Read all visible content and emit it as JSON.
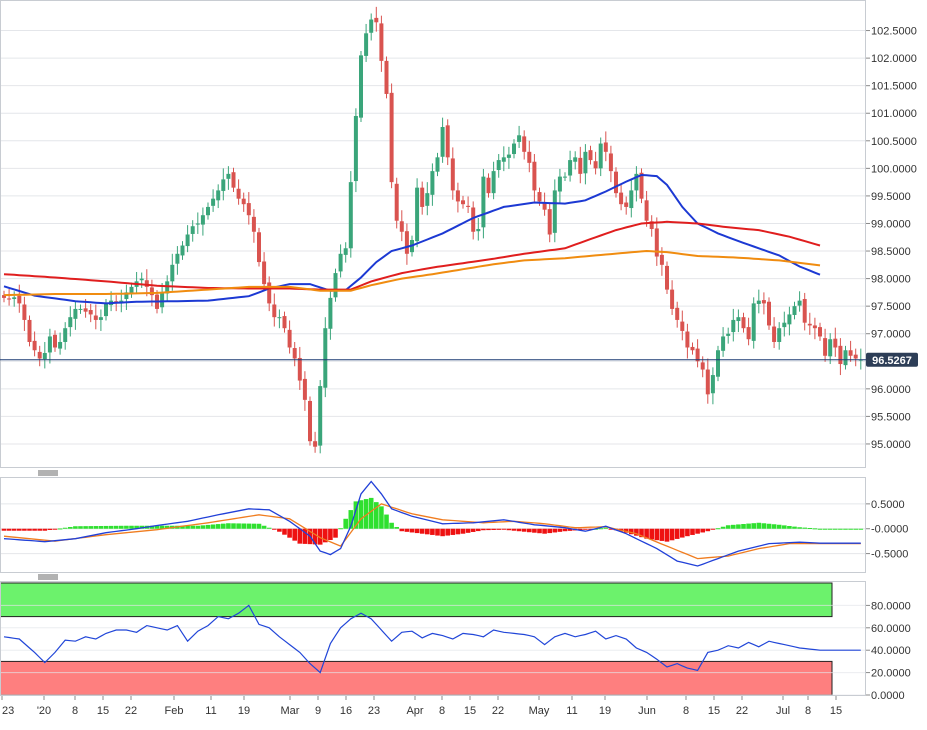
{
  "colors": {
    "up": "#3aa57a",
    "down": "#d9534f",
    "ma_blue": "#1c39d3",
    "ma_red": "#e01e1e",
    "ma_orange": "#f08c10",
    "macd_hist_pos": "#2fe02f",
    "macd_hist_neg": "#ee1111",
    "macd_line": "#2140d8",
    "signal_line": "#f07d20",
    "rsi_line": "#2146d8",
    "overbought_zone": "#6cf26c",
    "oversold_zone": "#fe7f7f",
    "price_line": "#1d3b73",
    "price_tag_bg": "#2d3e57",
    "grid": "#e4e6ea",
    "axis_text": "#333333"
  },
  "price_tag": "96.5267",
  "chart_data": [
    {
      "type": "candlestick",
      "panel": "price",
      "ylim": [
        94.6,
        103.0
      ],
      "y_ticks": [
        "102.5000",
        "102.0000",
        "101.5000",
        "101.0000",
        "100.5000",
        "100.0000",
        "99.5000",
        "99.0000",
        "98.5000",
        "98.0000",
        "97.5000",
        "97.0000",
        "96.5000",
        "96.0000",
        "95.5000",
        "95.0000"
      ],
      "current_price": 96.5267,
      "closes": [
        97.65,
        97.62,
        97.66,
        97.55,
        97.25,
        96.85,
        96.7,
        96.55,
        96.65,
        96.95,
        96.75,
        96.85,
        97.1,
        97.3,
        97.45,
        97.45,
        97.4,
        97.35,
        97.25,
        97.3,
        97.55,
        97.6,
        97.55,
        97.6,
        97.75,
        97.85,
        97.95,
        98.0,
        97.85,
        97.7,
        97.45,
        97.75,
        97.95,
        98.25,
        98.45,
        98.6,
        98.8,
        98.95,
        99.0,
        99.15,
        99.3,
        99.45,
        99.6,
        99.8,
        99.9,
        99.65,
        99.45,
        99.35,
        99.15,
        98.85,
        98.3,
        97.9,
        97.55,
        97.3,
        97.3,
        97.1,
        96.75,
        96.55,
        96.15,
        95.8,
        95.05,
        94.95,
        96.05,
        97.1,
        97.65,
        98.1,
        98.45,
        98.55,
        99.75,
        100.95,
        102.05,
        102.45,
        102.7,
        102.65,
        101.95,
        101.35,
        99.75,
        99.05,
        98.85,
        98.45,
        98.7,
        99.65,
        99.3,
        99.55,
        99.95,
        100.2,
        100.75,
        100.2,
        99.6,
        99.4,
        99.35,
        99.3,
        98.85,
        98.9,
        99.85,
        99.55,
        99.95,
        100.15,
        100.2,
        100.25,
        100.45,
        100.6,
        100.3,
        100.1,
        99.6,
        99.4,
        99.25,
        98.8,
        99.6,
        99.85,
        99.85,
        100.15,
        100.2,
        99.9,
        100.3,
        100.15,
        100.0,
        100.45,
        100.3,
        99.95,
        99.55,
        99.35,
        99.3,
        99.6,
        99.9,
        99.45,
        99.05,
        98.9,
        98.4,
        98.25,
        97.8,
        97.45,
        97.25,
        97.05,
        96.75,
        96.7,
        96.5,
        96.35,
        95.9,
        96.25,
        96.7,
        96.95,
        97.0,
        97.25,
        97.3,
        97.1,
        96.9,
        97.55,
        97.6,
        97.55,
        97.15,
        96.85,
        97.1,
        97.2,
        97.35,
        97.5,
        97.6,
        97.2,
        97.15,
        97.1,
        96.95,
        96.6,
        96.9,
        96.75,
        96.45,
        96.7,
        96.6,
        96.55,
        96.53
      ],
      "moving_averages": [
        {
          "color_key": "ma_blue",
          "knots": [
            [
              0,
              97.86
            ],
            [
              6,
              97.69
            ],
            [
              14,
              97.59
            ],
            [
              20,
              97.55
            ],
            [
              26,
              97.58
            ],
            [
              34,
              97.59
            ],
            [
              40,
              97.6
            ],
            [
              48,
              97.68
            ],
            [
              52,
              97.82
            ],
            [
              56,
              97.9
            ],
            [
              60,
              97.9
            ],
            [
              64,
              97.78
            ],
            [
              67,
              97.79
            ],
            [
              70,
              98.02
            ],
            [
              73,
              98.3
            ],
            [
              76,
              98.5
            ],
            [
              80,
              98.6
            ],
            [
              86,
              98.82
            ],
            [
              92,
              99.1
            ],
            [
              98,
              99.3
            ],
            [
              104,
              99.38
            ],
            [
              110,
              99.36
            ],
            [
              114,
              99.42
            ],
            [
              118,
              99.58
            ],
            [
              122,
              99.76
            ],
            [
              125,
              99.88
            ],
            [
              128,
              99.86
            ],
            [
              130,
              99.7
            ],
            [
              133,
              99.3
            ],
            [
              136,
              99.0
            ],
            [
              140,
              98.82
            ],
            [
              144,
              98.68
            ],
            [
              148,
              98.55
            ],
            [
              152,
              98.42
            ],
            [
              156,
              98.22
            ],
            [
              160,
              98.07
            ]
          ]
        },
        {
          "color_key": "ma_red",
          "knots": [
            [
              0,
              98.08
            ],
            [
              10,
              98.02
            ],
            [
              20,
              97.95
            ],
            [
              30,
              97.87
            ],
            [
              40,
              97.83
            ],
            [
              48,
              97.82
            ],
            [
              56,
              97.82
            ],
            [
              62,
              97.8
            ],
            [
              68,
              97.8
            ],
            [
              72,
              97.95
            ],
            [
              78,
              98.1
            ],
            [
              84,
              98.2
            ],
            [
              90,
              98.28
            ],
            [
              96,
              98.36
            ],
            [
              102,
              98.45
            ],
            [
              110,
              98.55
            ],
            [
              116,
              98.75
            ],
            [
              120,
              98.88
            ],
            [
              125,
              99.0
            ],
            [
              130,
              99.03
            ],
            [
              136,
              99.0
            ],
            [
              142,
              98.93
            ],
            [
              148,
              98.88
            ],
            [
              154,
              98.76
            ],
            [
              160,
              98.6
            ]
          ]
        },
        {
          "color_key": "ma_orange",
          "knots": [
            [
              0,
              97.7
            ],
            [
              10,
              97.72
            ],
            [
              20,
              97.72
            ],
            [
              30,
              97.74
            ],
            [
              40,
              97.8
            ],
            [
              48,
              97.85
            ],
            [
              56,
              97.85
            ],
            [
              62,
              97.78
            ],
            [
              68,
              97.78
            ],
            [
              72,
              97.88
            ],
            [
              78,
              98.0
            ],
            [
              84,
              98.08
            ],
            [
              90,
              98.17
            ],
            [
              96,
              98.26
            ],
            [
              102,
              98.33
            ],
            [
              110,
              98.37
            ],
            [
              116,
              98.42
            ],
            [
              122,
              98.47
            ],
            [
              126,
              98.5
            ],
            [
              130,
              98.48
            ],
            [
              136,
              98.41
            ],
            [
              144,
              98.38
            ],
            [
              152,
              98.33
            ],
            [
              160,
              98.24
            ]
          ]
        }
      ]
    },
    {
      "type": "bar+line",
      "panel": "MACD",
      "ylim": [
        -0.85,
        1.0
      ],
      "y_ticks": [
        "0.5000",
        "-0.0000",
        "-0.5000"
      ],
      "macd_line": [
        [
          0,
          -0.2
        ],
        [
          8,
          -0.26
        ],
        [
          14,
          -0.2
        ],
        [
          20,
          -0.08
        ],
        [
          26,
          0.0
        ],
        [
          31,
          0.08
        ],
        [
          36,
          0.15
        ],
        [
          42,
          0.28
        ],
        [
          48,
          0.4
        ],
        [
          52,
          0.38
        ],
        [
          56,
          0.15
        ],
        [
          60,
          -0.15
        ],
        [
          62,
          -0.45
        ],
        [
          64,
          -0.52
        ],
        [
          66,
          -0.4
        ],
        [
          68,
          0.05
        ],
        [
          70,
          0.7
        ],
        [
          72,
          0.95
        ],
        [
          74,
          0.7
        ],
        [
          76,
          0.4
        ],
        [
          80,
          0.25
        ],
        [
          86,
          0.1
        ],
        [
          92,
          0.12
        ],
        [
          98,
          0.18
        ],
        [
          104,
          0.08
        ],
        [
          110,
          0.02
        ],
        [
          114,
          -0.05
        ],
        [
          118,
          0.05
        ],
        [
          122,
          -0.1
        ],
        [
          128,
          -0.4
        ],
        [
          132,
          -0.65
        ],
        [
          136,
          -0.75
        ],
        [
          140,
          -0.6
        ],
        [
          144,
          -0.45
        ],
        [
          150,
          -0.3
        ],
        [
          156,
          -0.27
        ],
        [
          160,
          -0.29
        ]
      ],
      "signal_line": [
        [
          0,
          -0.15
        ],
        [
          10,
          -0.25
        ],
        [
          20,
          -0.12
        ],
        [
          30,
          -0.02
        ],
        [
          40,
          0.12
        ],
        [
          50,
          0.28
        ],
        [
          56,
          0.2
        ],
        [
          62,
          -0.18
        ],
        [
          66,
          -0.35
        ],
        [
          70,
          0.2
        ],
        [
          74,
          0.5
        ],
        [
          80,
          0.3
        ],
        [
          86,
          0.18
        ],
        [
          94,
          0.12
        ],
        [
          100,
          0.15
        ],
        [
          106,
          0.1
        ],
        [
          112,
          0.02
        ],
        [
          118,
          0.04
        ],
        [
          124,
          -0.1
        ],
        [
          130,
          -0.35
        ],
        [
          136,
          -0.6
        ],
        [
          142,
          -0.55
        ],
        [
          148,
          -0.4
        ],
        [
          154,
          -0.3
        ],
        [
          160,
          -0.3
        ]
      ],
      "histogram_keys": [
        [
          0,
          -0.04
        ],
        [
          8,
          -0.04
        ],
        [
          14,
          0.05
        ],
        [
          24,
          0.06
        ],
        [
          30,
          0.06
        ],
        [
          38,
          0.06
        ],
        [
          44,
          0.11
        ],
        [
          50,
          0.1
        ],
        [
          54,
          -0.06
        ],
        [
          58,
          -0.3
        ],
        [
          62,
          -0.32
        ],
        [
          65,
          -0.18
        ],
        [
          67,
          0.2
        ],
        [
          69,
          0.55
        ],
        [
          72,
          0.62
        ],
        [
          74,
          0.45
        ],
        [
          76,
          0.12
        ],
        [
          78,
          -0.05
        ],
        [
          82,
          -0.1
        ],
        [
          86,
          -0.15
        ],
        [
          90,
          -0.1
        ],
        [
          94,
          -0.03
        ],
        [
          98,
          -0.02
        ],
        [
          102,
          -0.06
        ],
        [
          106,
          -0.1
        ],
        [
          110,
          -0.05
        ],
        [
          114,
          -0.02
        ],
        [
          118,
          0.02
        ],
        [
          122,
          -0.08
        ],
        [
          126,
          -0.2
        ],
        [
          130,
          -0.26
        ],
        [
          134,
          -0.15
        ],
        [
          138,
          -0.05
        ],
        [
          142,
          0.07
        ],
        [
          148,
          0.12
        ],
        [
          152,
          0.08
        ],
        [
          156,
          0.03
        ],
        [
          160,
          0.0
        ]
      ]
    },
    {
      "type": "line",
      "panel": "RSI",
      "ylim": [
        0,
        100
      ],
      "y_ticks": [
        "80.0000",
        "60.0000",
        "40.0000",
        "20.0000",
        "0.0000"
      ],
      "overbought": 70,
      "oversold": 30,
      "knots": [
        [
          0,
          52
        ],
        [
          3,
          50
        ],
        [
          6,
          38
        ],
        [
          8,
          29
        ],
        [
          10,
          38
        ],
        [
          12,
          49
        ],
        [
          14,
          48
        ],
        [
          16,
          52
        ],
        [
          18,
          50
        ],
        [
          20,
          55
        ],
        [
          22,
          58
        ],
        [
          24,
          58
        ],
        [
          26,
          56
        ],
        [
          28,
          62
        ],
        [
          30,
          60
        ],
        [
          32,
          58
        ],
        [
          34,
          62
        ],
        [
          36,
          48
        ],
        [
          38,
          57
        ],
        [
          40,
          62
        ],
        [
          42,
          70
        ],
        [
          44,
          68
        ],
        [
          46,
          73
        ],
        [
          48,
          80
        ],
        [
          50,
          63
        ],
        [
          52,
          60
        ],
        [
          54,
          52
        ],
        [
          56,
          45
        ],
        [
          58,
          38
        ],
        [
          60,
          28
        ],
        [
          62,
          20
        ],
        [
          64,
          46
        ],
        [
          66,
          60
        ],
        [
          68,
          68
        ],
        [
          70,
          73
        ],
        [
          72,
          68
        ],
        [
          74,
          58
        ],
        [
          76,
          48
        ],
        [
          78,
          56
        ],
        [
          80,
          57
        ],
        [
          82,
          51
        ],
        [
          84,
          55
        ],
        [
          86,
          53
        ],
        [
          88,
          50
        ],
        [
          90,
          55
        ],
        [
          92,
          54
        ],
        [
          94,
          52
        ],
        [
          96,
          58
        ],
        [
          98,
          56
        ],
        [
          100,
          55
        ],
        [
          102,
          54
        ],
        [
          104,
          52
        ],
        [
          106,
          45
        ],
        [
          108,
          52
        ],
        [
          110,
          55
        ],
        [
          112,
          52
        ],
        [
          114,
          54
        ],
        [
          116,
          57
        ],
        [
          118,
          50
        ],
        [
          120,
          53
        ],
        [
          122,
          50
        ],
        [
          124,
          42
        ],
        [
          126,
          38
        ],
        [
          128,
          32
        ],
        [
          130,
          25
        ],
        [
          132,
          28
        ],
        [
          134,
          24
        ],
        [
          136,
          22
        ],
        [
          138,
          38
        ],
        [
          140,
          40
        ],
        [
          142,
          44
        ],
        [
          144,
          42
        ],
        [
          146,
          47
        ],
        [
          148,
          43
        ],
        [
          150,
          48
        ],
        [
          152,
          46
        ],
        [
          154,
          44
        ],
        [
          156,
          42
        ],
        [
          158,
          41
        ],
        [
          160,
          40
        ]
      ]
    },
    {
      "type": "time_axis",
      "x_tick_labels": [
        "23",
        "'20",
        "8",
        "15",
        "22",
        "Feb",
        "11",
        "19",
        "Mar",
        "9",
        "16",
        "23",
        "Apr",
        "8",
        "15",
        "22",
        "May",
        "11",
        "19",
        "Jun",
        "8",
        "15",
        "22",
        "Jul",
        "8",
        "15"
      ]
    }
  ]
}
